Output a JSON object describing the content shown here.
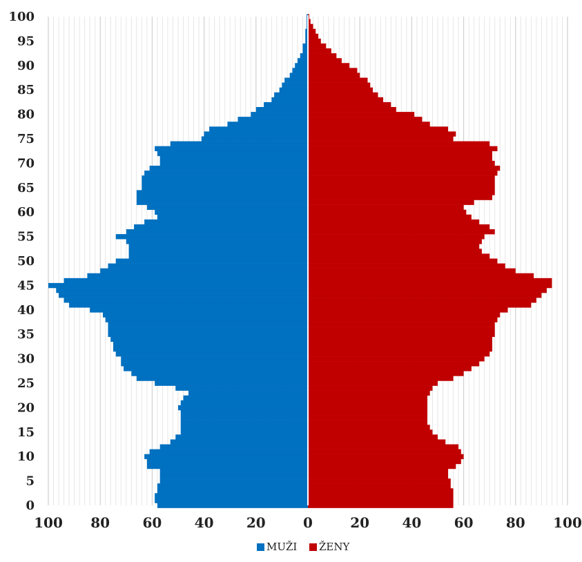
{
  "chart_data": {
    "type": "bar",
    "orientation": "horizontal",
    "title": "",
    "xlabel": "",
    "ylabel": "",
    "xlim": [
      -100,
      100
    ],
    "ylim": [
      0,
      100
    ],
    "grid": true,
    "x_ticks": [
      -100,
      -80,
      -60,
      -40,
      -20,
      0,
      20,
      40,
      60,
      80,
      100
    ],
    "x_tick_labels": [
      "100",
      "80",
      "60",
      "40",
      "20",
      "0",
      "20",
      "40",
      "60",
      "80",
      "100"
    ],
    "y_ticks": [
      0,
      5,
      10,
      15,
      20,
      25,
      30,
      35,
      40,
      45,
      50,
      55,
      60,
      65,
      70,
      75,
      80,
      85,
      90,
      95,
      100
    ],
    "y_tick_labels": [
      "0",
      "5",
      "10",
      "15",
      "20",
      "25",
      "30",
      "35",
      "40",
      "45",
      "50",
      "55",
      "60",
      "65",
      "70",
      "75",
      "80",
      "85",
      "90",
      "95",
      "100"
    ],
    "legend_position": "bottom",
    "ages": [
      0,
      1,
      2,
      3,
      4,
      5,
      6,
      7,
      8,
      9,
      10,
      11,
      12,
      13,
      14,
      15,
      16,
      17,
      18,
      19,
      20,
      21,
      22,
      23,
      24,
      25,
      26,
      27,
      28,
      29,
      30,
      31,
      32,
      33,
      34,
      35,
      36,
      37,
      38,
      39,
      40,
      41,
      42,
      43,
      44,
      45,
      46,
      47,
      48,
      49,
      50,
      51,
      52,
      53,
      54,
      55,
      56,
      57,
      58,
      59,
      60,
      61,
      62,
      63,
      64,
      65,
      66,
      67,
      68,
      69,
      70,
      71,
      72,
      73,
      74,
      75,
      76,
      77,
      78,
      79,
      80,
      81,
      82,
      83,
      84,
      85,
      86,
      87,
      88,
      89,
      90,
      91,
      92,
      93,
      94,
      95,
      96,
      97,
      98,
      99,
      100
    ],
    "series": [
      {
        "name": "MUŽI",
        "color": "#0070C0",
        "values": [
          58,
          59,
          59,
          58,
          58,
          57,
          57,
          57,
          62,
          62,
          63,
          61,
          57,
          53,
          51,
          49,
          49,
          49,
          49,
          49,
          50,
          49,
          48,
          46,
          51,
          59,
          66,
          68,
          71,
          72,
          72,
          74,
          75,
          75,
          76,
          77,
          77,
          77,
          78,
          79,
          84,
          92,
          94,
          96,
          97,
          100,
          94,
          85,
          80,
          77,
          74,
          69,
          69,
          69,
          70,
          74,
          70,
          67,
          63,
          58,
          59,
          62,
          66,
          66,
          66,
          64,
          64,
          64,
          63,
          61,
          57,
          57,
          58,
          59,
          53,
          41,
          40,
          38,
          31,
          27,
          22,
          20,
          17,
          14,
          13,
          11,
          10,
          9,
          7,
          6,
          5,
          4,
          3,
          2,
          2,
          1,
          1,
          1,
          0.5,
          0.5,
          0.5
        ]
      },
      {
        "name": "ŽENY",
        "color": "#C00000",
        "values": [
          56,
          56,
          56,
          56,
          55,
          55,
          54,
          54,
          57,
          59,
          60,
          59,
          58,
          53,
          50,
          48,
          47,
          46,
          46,
          46,
          46,
          46,
          46,
          47,
          48,
          50,
          56,
          60,
          63,
          66,
          68,
          70,
          71,
          71,
          71,
          72,
          72,
          72,
          73,
          74,
          77,
          86,
          88,
          90,
          92,
          94,
          94,
          87,
          80,
          76,
          73,
          70,
          67,
          66,
          67,
          68,
          72,
          70,
          66,
          63,
          61,
          60,
          64,
          71,
          72,
          72,
          72,
          72,
          73,
          74,
          72,
          71,
          71,
          73,
          70,
          56,
          57,
          54,
          47,
          44,
          41,
          34,
          32,
          29,
          27,
          25,
          24,
          23,
          20,
          19,
          16,
          13,
          11,
          9,
          7,
          5,
          4,
          3,
          2,
          1,
          0.5
        ]
      }
    ]
  }
}
